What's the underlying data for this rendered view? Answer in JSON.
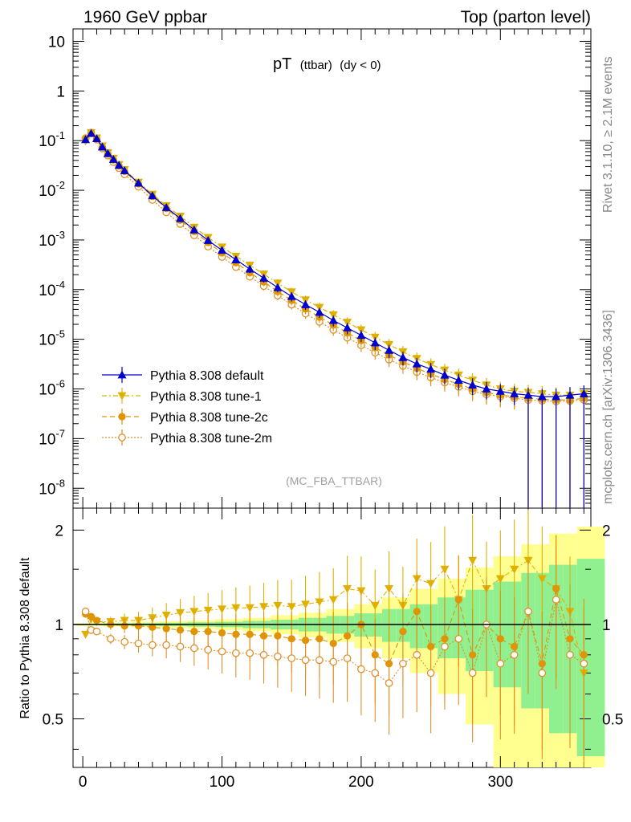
{
  "header": {
    "left": "1960 GeV ppbar",
    "right": "Top (parton level)"
  },
  "plot_title_main": "pT",
  "plot_title_sub": "(ttbar)",
  "plot_title_cond": "(dy < 0)",
  "watermark": "(MC_FBA_TTBAR)",
  "side_text_top": "Rivet 3.1.10, ≥ 2.1M events",
  "side_text_bottom": "mcplots.cern.ch [arXiv:1306.3436]",
  "ratio_ylabel": "Ratio to Pythia 8.308 default",
  "colors": {
    "default": "#0000cc",
    "tune1": "#e0b000",
    "tune2c": "#e09500",
    "tune2m": "#e0902a",
    "band_green": "#90f090",
    "band_yellow": "#ffff90"
  },
  "chart_data": [
    {
      "type": "scatter",
      "title": "pT (ttbar) (dy < 0)",
      "xlim": [
        -7,
        365
      ],
      "ylim_log10": [
        -8.4,
        1.25
      ],
      "yscale": "log",
      "y_tick_labels": [
        "10^-8",
        "10^-7",
        "10^-6",
        "10^-5",
        "10^-4",
        "10^-3",
        "10^-2",
        "10^-1",
        "1",
        "10"
      ],
      "legend_position": "lower-left",
      "series": [
        {
          "name": "Pythia 8.308 default",
          "marker": "filled-triangle-up",
          "x": [
            2,
            6,
            10,
            14,
            18,
            22,
            26,
            30,
            40,
            50,
            60,
            70,
            80,
            90,
            100,
            110,
            120,
            130,
            140,
            150,
            160,
            170,
            180,
            190,
            200,
            210,
            220,
            230,
            240,
            250,
            260,
            270,
            280,
            290,
            300,
            310,
            320,
            330,
            340,
            350,
            360
          ],
          "y": [
            0.105,
            0.14,
            0.11,
            0.075,
            0.055,
            0.042,
            0.032,
            0.025,
            0.014,
            0.0078,
            0.0045,
            0.0027,
            0.0016,
            0.00098,
            0.00062,
            0.0004,
            0.00026,
            0.00017,
            0.00011,
            7.3e-05,
            5e-05,
            3.5e-05,
            2.4e-05,
            1.7e-05,
            1.2e-05,
            8.5e-06,
            6e-06,
            4.3e-06,
            3.2e-06,
            2.5e-06,
            1.9e-06,
            1.5e-06,
            1.2e-06,
            1e-06,
            9e-07,
            8e-07,
            7.5e-07,
            7e-07,
            7e-07,
            7.5e-07,
            8e-07
          ]
        },
        {
          "name": "Pythia 8.308 tune-1",
          "marker": "filled-triangle-down",
          "x": [
            2,
            6,
            10,
            14,
            18,
            22,
            26,
            30,
            40,
            50,
            60,
            70,
            80,
            90,
            100,
            110,
            120,
            130,
            140,
            150,
            160,
            170,
            180,
            190,
            200,
            210,
            220,
            230,
            240,
            250,
            260,
            270,
            280,
            290,
            300,
            310,
            320,
            330,
            340,
            350,
            360
          ],
          "y": [
            0.098,
            0.145,
            0.113,
            0.078,
            0.057,
            0.044,
            0.033,
            0.026,
            0.0145,
            0.0083,
            0.0049,
            0.003,
            0.0018,
            0.00112,
            0.00072,
            0.00047,
            0.00031,
            0.000205,
            0.000135,
            9e-05,
            6.2e-05,
            4.4e-05,
            3.1e-05,
            2.2e-05,
            1.55e-05,
            1.1e-05,
            7.8e-06,
            5.6e-06,
            4.1e-06,
            3.1e-06,
            2.4e-06,
            1.9e-06,
            1.5e-06,
            1.2e-06,
            1e-06,
            9e-07,
            8.5e-07,
            8e-07,
            7.5e-07,
            7.5e-07,
            8e-07
          ]
        },
        {
          "name": "Pythia 8.308 tune-2c",
          "marker": "filled-circle",
          "x": [
            2,
            6,
            10,
            14,
            18,
            22,
            26,
            30,
            40,
            50,
            60,
            70,
            80,
            90,
            100,
            110,
            120,
            130,
            140,
            150,
            160,
            170,
            180,
            190,
            200,
            210,
            220,
            230,
            240,
            250,
            260,
            270,
            280,
            290,
            300,
            310,
            320,
            330,
            340,
            350,
            360
          ],
          "y": [
            0.108,
            0.146,
            0.109,
            0.074,
            0.054,
            0.041,
            0.031,
            0.024,
            0.0135,
            0.0075,
            0.0043,
            0.0025,
            0.00148,
            0.00089,
            0.00055,
            0.00035,
            0.00022,
            0.000143,
            9.2e-05,
            6.1e-05,
            4.1e-05,
            2.8e-05,
            1.95e-05,
            1.35e-05,
            9.5e-06,
            6.8e-06,
            4.8e-06,
            3.5e-06,
            2.6e-06,
            2e-06,
            1.55e-06,
            1.25e-06,
            1e-06,
            8.5e-07,
            7.5e-07,
            7e-07,
            6.5e-07,
            6.2e-07,
            6e-07,
            6e-07,
            6.5e-07
          ]
        },
        {
          "name": "Pythia 8.308 tune-2m",
          "marker": "open-circle",
          "x": [
            2,
            6,
            10,
            14,
            18,
            22,
            26,
            30,
            40,
            50,
            60,
            70,
            80,
            90,
            100,
            110,
            120,
            130,
            140,
            150,
            160,
            170,
            180,
            190,
            200,
            210,
            220,
            230,
            240,
            250,
            260,
            270,
            280,
            290,
            300,
            310,
            320,
            330,
            340,
            350,
            360
          ],
          "y": [
            0.112,
            0.14,
            0.105,
            0.07,
            0.05,
            0.037,
            0.028,
            0.021,
            0.0118,
            0.0064,
            0.0036,
            0.0021,
            0.00124,
            0.00074,
            0.000455,
            0.000285,
            0.000182,
            0.000118,
            7.6e-05,
            5e-05,
            3.3e-05,
            2.25e-05,
            1.55e-05,
            1.08e-05,
            7.6e-06,
            5.4e-06,
            3.9e-06,
            2.9e-06,
            2.2e-06,
            1.7e-06,
            1.35e-06,
            1.1e-06,
            9e-07,
            7.8e-07,
            7e-07,
            6.5e-07,
            6e-07,
            5.8e-07,
            5.6e-07,
            5.7e-07,
            6e-07
          ]
        }
      ]
    },
    {
      "type": "scatter",
      "ylabel": "Ratio to Pythia 8.308 default",
      "xlim": [
        -7,
        365
      ],
      "ylim": [
        0.35,
        2.35
      ],
      "yscale": "log",
      "x_tick_labels": [
        "0",
        "100",
        "200",
        "300"
      ],
      "y_tick_labels": [
        "0.5",
        "1",
        "2"
      ],
      "reference_line": 1,
      "band": {
        "x": [
          0,
          20,
          40,
          60,
          80,
          100,
          120,
          140,
          160,
          180,
          200,
          220,
          240,
          260,
          280,
          300,
          320,
          340,
          360
        ],
        "yellow_half_width": [
          0.01,
          0.015,
          0.02,
          0.025,
          0.03,
          0.04,
          0.05,
          0.07,
          0.09,
          0.12,
          0.16,
          0.22,
          0.3,
          0.4,
          0.52,
          0.65,
          0.8,
          0.95,
          1.05
        ],
        "green_half_width": [
          0.005,
          0.008,
          0.01,
          0.013,
          0.016,
          0.02,
          0.027,
          0.036,
          0.05,
          0.065,
          0.085,
          0.12,
          0.16,
          0.22,
          0.29,
          0.37,
          0.46,
          0.55,
          0.62
        ]
      },
      "series": [
        {
          "name": "Pythia 8.308 tune-1",
          "x": [
            2,
            6,
            10,
            20,
            30,
            40,
            50,
            60,
            70,
            80,
            90,
            100,
            110,
            120,
            130,
            140,
            150,
            160,
            170,
            180,
            190,
            200,
            210,
            220,
            230,
            240,
            250,
            260,
            270,
            280,
            290,
            300,
            310,
            320,
            330,
            340,
            350,
            360
          ],
          "y": [
            0.93,
            1.04,
            1.02,
            1.02,
            1.03,
            1.03,
            1.05,
            1.07,
            1.09,
            1.1,
            1.11,
            1.12,
            1.13,
            1.13,
            1.14,
            1.15,
            1.14,
            1.16,
            1.18,
            1.2,
            1.3,
            1.28,
            1.15,
            1.3,
            1.15,
            1.4,
            1.35,
            1.5,
            1.2,
            1.6,
            1.3,
            1.4,
            1.5,
            1.6,
            1.4,
            1.3,
            1.1,
            0.7
          ]
        },
        {
          "name": "Pythia 8.308 tune-2c",
          "x": [
            2,
            6,
            10,
            20,
            30,
            40,
            50,
            60,
            70,
            80,
            90,
            100,
            110,
            120,
            130,
            140,
            150,
            160,
            170,
            180,
            190,
            200,
            210,
            220,
            230,
            240,
            250,
            260,
            270,
            280,
            290,
            300,
            310,
            320,
            330,
            340,
            350,
            360
          ],
          "y": [
            1.08,
            1.06,
            1.03,
            1.0,
            0.99,
            0.99,
            0.98,
            0.97,
            0.96,
            0.95,
            0.95,
            0.94,
            0.93,
            0.93,
            0.92,
            0.92,
            0.9,
            0.89,
            0.9,
            0.87,
            0.92,
            1.0,
            0.8,
            0.75,
            0.95,
            1.1,
            0.85,
            0.9,
            1.2,
            0.8,
            1.0,
            0.9,
            0.85,
            1.1,
            0.75,
            1.3,
            0.9,
            0.8
          ]
        },
        {
          "name": "Pythia 8.308 tune-2m",
          "x": [
            2,
            6,
            10,
            20,
            30,
            40,
            50,
            60,
            70,
            80,
            90,
            100,
            110,
            120,
            130,
            140,
            150,
            160,
            170,
            180,
            190,
            200,
            210,
            220,
            230,
            240,
            250,
            260,
            270,
            280,
            290,
            300,
            310,
            320,
            330,
            340,
            350,
            360
          ],
          "y": [
            1.1,
            0.96,
            0.95,
            0.9,
            0.88,
            0.87,
            0.86,
            0.86,
            0.85,
            0.84,
            0.83,
            0.82,
            0.81,
            0.81,
            0.8,
            0.79,
            0.78,
            0.77,
            0.77,
            0.76,
            0.78,
            0.72,
            0.7,
            0.65,
            0.75,
            0.8,
            0.7,
            0.85,
            0.9,
            0.7,
            1.0,
            0.75,
            0.8,
            1.1,
            0.7,
            1.2,
            0.8,
            0.75
          ]
        }
      ]
    }
  ]
}
